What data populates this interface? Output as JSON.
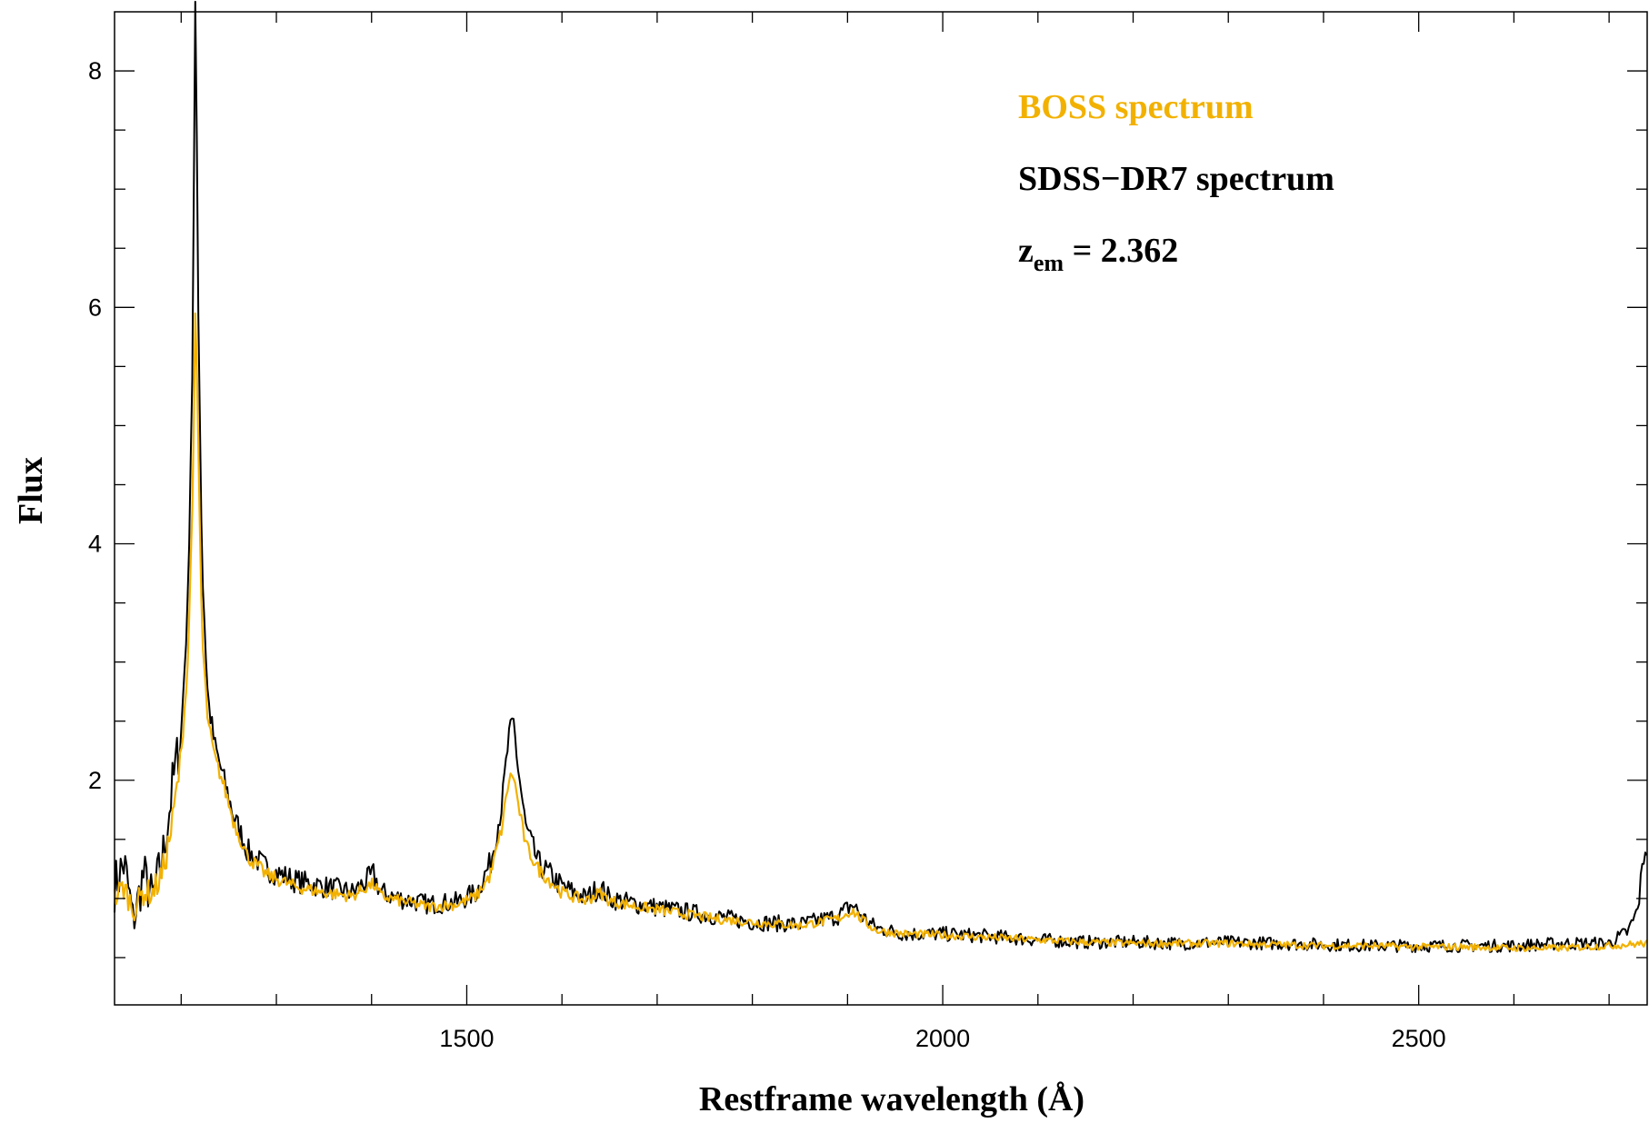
{
  "colors": {
    "boss": "#F2B100",
    "sdss": "#000000",
    "axis": "#000000",
    "background": "#ffffff"
  },
  "chart_data": {
    "type": "line",
    "title": "",
    "xlabel": "Restframe wavelength (Å)",
    "ylabel": "Flux",
    "xlim": [
      1130,
      2740
    ],
    "ylim": [
      0.1,
      8.5
    ],
    "x_ticks": [
      1500,
      2000,
      2500
    ],
    "x_tick_labels": [
      "1500",
      "2000",
      "2500"
    ],
    "y_ticks": [
      2,
      4,
      6,
      8
    ],
    "y_tick_labels": [
      "2",
      "4",
      "6",
      "8"
    ],
    "grid": false,
    "legend": [
      {
        "text": "BOSS spectrum",
        "color": "#F2B100"
      },
      {
        "text": "SDSS−DR7 spectrum",
        "color": "#000000"
      }
    ],
    "redshift_label": {
      "base": "z",
      "subscript": "em",
      "value": " = 2.362"
    },
    "series": [
      {
        "name": "SDSS−DR7 spectrum",
        "color": "#000000",
        "points": [
          [
            1130,
            1.1
          ],
          [
            1140,
            1.3
          ],
          [
            1150,
            0.8
          ],
          [
            1160,
            1.2
          ],
          [
            1170,
            1.0
          ],
          [
            1180,
            1.3
          ],
          [
            1190,
            1.9
          ],
          [
            1200,
            2.4
          ],
          [
            1207,
            3.5
          ],
          [
            1212,
            5.6
          ],
          [
            1215,
            8.7
          ],
          [
            1218,
            6.0
          ],
          [
            1222,
            3.8
          ],
          [
            1228,
            2.7
          ],
          [
            1235,
            2.3
          ],
          [
            1245,
            2.0
          ],
          [
            1255,
            1.7
          ],
          [
            1270,
            1.4
          ],
          [
            1290,
            1.25
          ],
          [
            1320,
            1.15
          ],
          [
            1350,
            1.1
          ],
          [
            1380,
            1.05
          ],
          [
            1395,
            1.15
          ],
          [
            1402,
            1.2
          ],
          [
            1410,
            1.05
          ],
          [
            1430,
            1.0
          ],
          [
            1460,
            0.95
          ],
          [
            1490,
            0.97
          ],
          [
            1510,
            1.05
          ],
          [
            1525,
            1.3
          ],
          [
            1537,
            1.8
          ],
          [
            1544,
            2.35
          ],
          [
            1549,
            2.5
          ],
          [
            1554,
            2.1
          ],
          [
            1562,
            1.6
          ],
          [
            1575,
            1.3
          ],
          [
            1600,
            1.1
          ],
          [
            1625,
            1.0
          ],
          [
            1640,
            1.1
          ],
          [
            1650,
            1.0
          ],
          [
            1680,
            0.95
          ],
          [
            1720,
            0.9
          ],
          [
            1760,
            0.85
          ],
          [
            1800,
            0.8
          ],
          [
            1850,
            0.78
          ],
          [
            1890,
            0.85
          ],
          [
            1905,
            0.95
          ],
          [
            1915,
            0.85
          ],
          [
            1930,
            0.75
          ],
          [
            1960,
            0.7
          ],
          [
            2000,
            0.7
          ],
          [
            2050,
            0.68
          ],
          [
            2100,
            0.65
          ],
          [
            2150,
            0.63
          ],
          [
            2200,
            0.63
          ],
          [
            2250,
            0.62
          ],
          [
            2300,
            0.63
          ],
          [
            2350,
            0.62
          ],
          [
            2400,
            0.61
          ],
          [
            2450,
            0.6
          ],
          [
            2500,
            0.6
          ],
          [
            2550,
            0.6
          ],
          [
            2600,
            0.6
          ],
          [
            2650,
            0.62
          ],
          [
            2700,
            0.62
          ],
          [
            2720,
            0.72
          ],
          [
            2730,
            0.9
          ],
          [
            2737,
            1.4
          ],
          [
            2740,
            1.45
          ]
        ]
      },
      {
        "name": "BOSS spectrum",
        "color": "#F2B100",
        "points": [
          [
            1130,
            1.0
          ],
          [
            1140,
            1.1
          ],
          [
            1150,
            0.9
          ],
          [
            1160,
            1.05
          ],
          [
            1170,
            1.05
          ],
          [
            1180,
            1.2
          ],
          [
            1190,
            1.6
          ],
          [
            1200,
            2.2
          ],
          [
            1207,
            3.0
          ],
          [
            1212,
            4.4
          ],
          [
            1215,
            6.0
          ],
          [
            1218,
            4.8
          ],
          [
            1222,
            3.2
          ],
          [
            1228,
            2.5
          ],
          [
            1235,
            2.2
          ],
          [
            1245,
            1.95
          ],
          [
            1255,
            1.65
          ],
          [
            1270,
            1.35
          ],
          [
            1290,
            1.2
          ],
          [
            1320,
            1.1
          ],
          [
            1350,
            1.05
          ],
          [
            1380,
            1.02
          ],
          [
            1395,
            1.1
          ],
          [
            1402,
            1.12
          ],
          [
            1410,
            1.02
          ],
          [
            1430,
            0.98
          ],
          [
            1460,
            0.93
          ],
          [
            1490,
            0.95
          ],
          [
            1510,
            1.02
          ],
          [
            1525,
            1.2
          ],
          [
            1537,
            1.6
          ],
          [
            1544,
            2.0
          ],
          [
            1549,
            2.05
          ],
          [
            1554,
            1.8
          ],
          [
            1562,
            1.45
          ],
          [
            1575,
            1.25
          ],
          [
            1600,
            1.05
          ],
          [
            1625,
            0.98
          ],
          [
            1640,
            1.05
          ],
          [
            1650,
            0.98
          ],
          [
            1680,
            0.93
          ],
          [
            1720,
            0.88
          ],
          [
            1760,
            0.83
          ],
          [
            1800,
            0.8
          ],
          [
            1850,
            0.77
          ],
          [
            1890,
            0.83
          ],
          [
            1905,
            0.9
          ],
          [
            1915,
            0.82
          ],
          [
            1930,
            0.73
          ],
          [
            1960,
            0.7
          ],
          [
            2000,
            0.69
          ],
          [
            2050,
            0.67
          ],
          [
            2100,
            0.65
          ],
          [
            2150,
            0.63
          ],
          [
            2200,
            0.62
          ],
          [
            2250,
            0.62
          ],
          [
            2300,
            0.62
          ],
          [
            2350,
            0.61
          ],
          [
            2400,
            0.6
          ],
          [
            2450,
            0.6
          ],
          [
            2500,
            0.59
          ],
          [
            2550,
            0.59
          ],
          [
            2600,
            0.58
          ],
          [
            2650,
            0.58
          ],
          [
            2700,
            0.6
          ],
          [
            2740,
            0.62
          ]
        ]
      }
    ]
  }
}
